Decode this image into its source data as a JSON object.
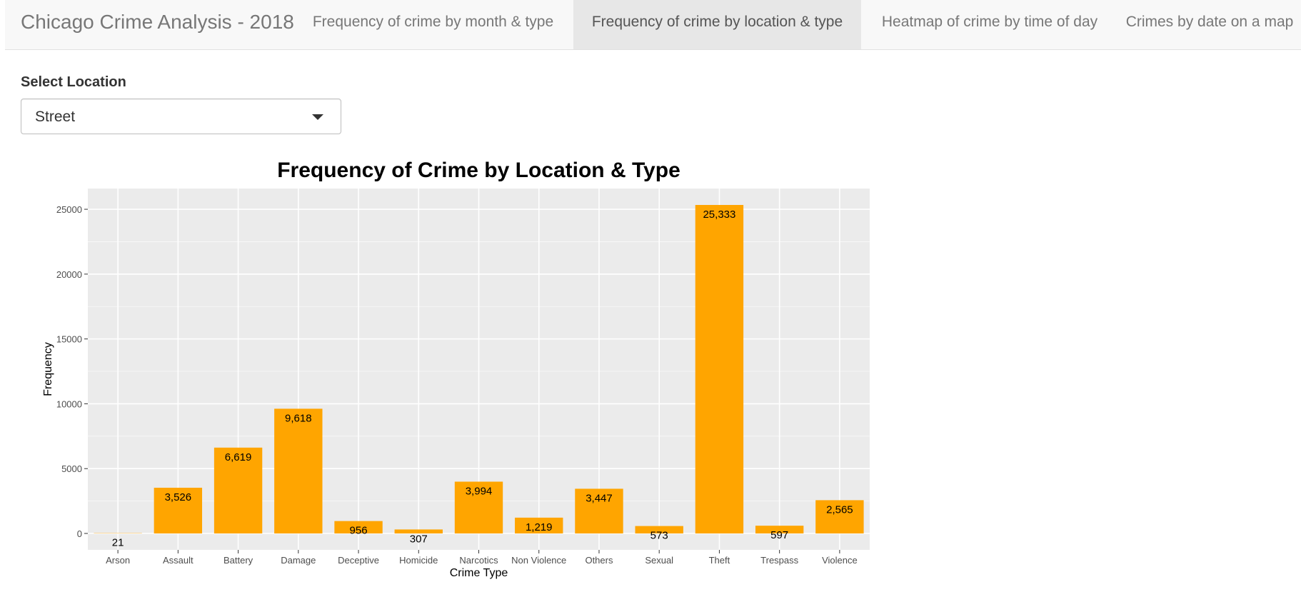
{
  "navbar": {
    "brand": "Chicago Crime Analysis - 2018",
    "tabs": [
      {
        "label": "Frequency of crime by month & type",
        "active": false
      },
      {
        "label": "Frequency of crime by location & type",
        "active": true
      },
      {
        "label": "Heatmap of crime by time of day",
        "active": false
      },
      {
        "label": "Crimes by date on a map",
        "active": false
      }
    ]
  },
  "location_select": {
    "label": "Select Location",
    "value": "Street"
  },
  "colors": {
    "bar": "#FFA500",
    "panel": "#EBEBEB",
    "grid": "#FFFFFF",
    "active_tab": "#E7E7E7"
  },
  "icons": {
    "select_caret": "caret-down-icon"
  },
  "chart_data": {
    "type": "bar",
    "title": "Frequency of Crime by Location & Type",
    "xlabel": "Crime Type",
    "ylabel": "Frequency",
    "categories": [
      "Arson",
      "Assault",
      "Battery",
      "Damage",
      "Deceptive",
      "Homicide",
      "Narcotics",
      "Non Violence",
      "Others",
      "Sexual",
      "Theft",
      "Trespass",
      "Violence"
    ],
    "values": [
      21,
      3526,
      6619,
      9618,
      956,
      307,
      3994,
      1219,
      3447,
      573,
      25333,
      597,
      2565
    ],
    "data_labels": [
      "21",
      "3,526",
      "6,619",
      "9,618",
      "956",
      "307",
      "3,994",
      "1,219",
      "3,447",
      "573",
      "25,333",
      "597",
      "2,565"
    ],
    "yticks": [
      0,
      5000,
      10000,
      15000,
      20000,
      25000
    ],
    "ylim": [
      -1266,
      26600
    ],
    "grid": true,
    "legend": "none"
  }
}
